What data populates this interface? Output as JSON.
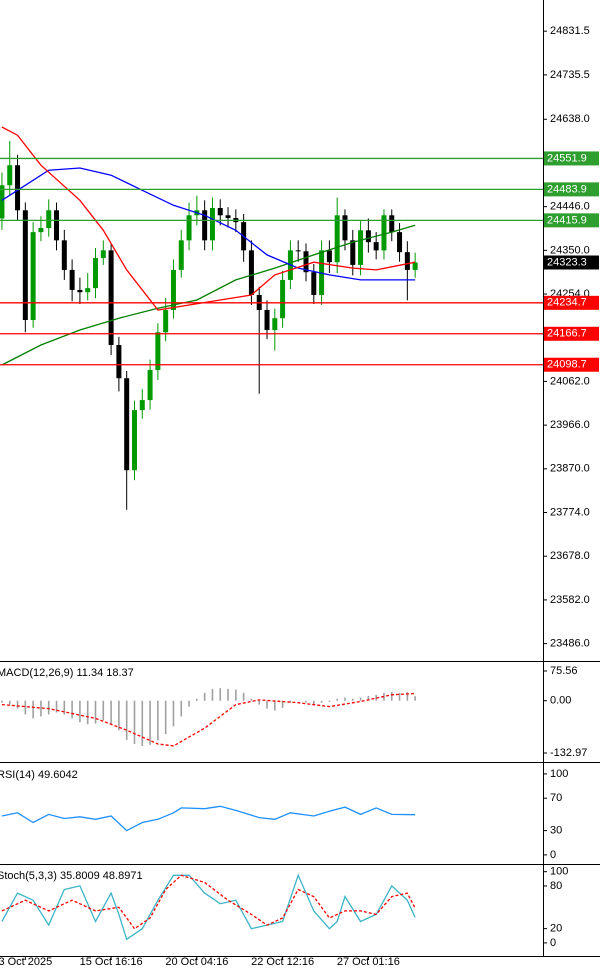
{
  "chart_data": [
    {
      "type": "candlestick",
      "xlim": [
        -0.25,
        69.4
      ],
      "ylim": [
        23450,
        24900
      ],
      "yticks": [
        24831.5,
        24735.5,
        {
          "value": 24638,
          "label": "24638.0"
        },
        {
          "value": 24446,
          "label": "24446.0"
        },
        {
          "value": 24350,
          "label": "24350.0"
        },
        {
          "value": 24254,
          "label": "24254.0"
        },
        {
          "value": 24062,
          "label": "24062.0"
        },
        {
          "value": 23966,
          "label": "23966.0"
        },
        {
          "value": 23870,
          "label": "23870.0"
        },
        {
          "value": 23774,
          "label": "23774.0"
        },
        {
          "value": 23678,
          "label": "23678.0"
        },
        {
          "value": 23582,
          "label": "23582.0"
        },
        {
          "value": 23486,
          "label": "23486.0"
        }
      ],
      "up_color": "#009900",
      "down_color": "#000000",
      "open": [
        24420,
        24493,
        24537,
        24438,
        24197,
        24390,
        24399,
        24438,
        24372,
        24307,
        24263,
        24258,
        24267,
        24333,
        24350,
        24142,
        24069,
        23867,
        23999,
        24021,
        24087,
        24170,
        24219,
        24307,
        24372,
        24427,
        24438,
        24372,
        24443,
        24427,
        24421,
        24412,
        24350,
        24252,
        24219,
        24175,
        24201,
        24285,
        24350,
        24348,
        24302,
        24252,
        24350,
        24324,
        24427,
        24372,
        24318,
        24394,
        24368,
        24350,
        24427,
        24390,
        24346,
        24307
      ],
      "high": [
        24521,
        24590,
        24560,
        24455,
        24412,
        24425,
        24462,
        24455,
        24395,
        24330,
        24290,
        24300,
        24355,
        24372,
        24365,
        24160,
        24085,
        24020,
        24045,
        24110,
        24190,
        24245,
        24330,
        24395,
        24455,
        24470,
        24460,
        24466,
        24462,
        24445,
        24440,
        24430,
        24372,
        24270,
        24240,
        24222,
        24305,
        24372,
        24372,
        24365,
        24320,
        24372,
        24372,
        24466,
        24440,
        24395,
        24415,
        24420,
        24390,
        24440,
        24440,
        24410,
        24370,
        24345
      ],
      "low": [
        24395,
        24470,
        24415,
        24170,
        24180,
        24370,
        24380,
        24350,
        24285,
        24238,
        24232,
        24240,
        24245,
        24318,
        24120,
        24040,
        23780,
        23845,
        23980,
        24000,
        24065,
        24150,
        24200,
        24290,
        24350,
        24405,
        24350,
        24350,
        24405,
        24400,
        24390,
        24325,
        24230,
        24035,
        24155,
        24130,
        24180,
        24265,
        24325,
        24282,
        24232,
        24230,
        24300,
        24300,
        24350,
        24295,
        24295,
        24345,
        24330,
        24330,
        24370,
        24325,
        24240,
        24290
      ],
      "close": [
        24493,
        24537,
        24438,
        24197,
        24390,
        24399,
        24438,
        24372,
        24307,
        24263,
        24258,
        24267,
        24333,
        24350,
        24142,
        24069,
        23867,
        23999,
        24021,
        24087,
        24170,
        24219,
        24307,
        24372,
        24427,
        24438,
        24372,
        24443,
        24427,
        24421,
        24412,
        24350,
        24252,
        24219,
        24175,
        24201,
        24285,
        24350,
        24348,
        24302,
        24252,
        24350,
        24324,
        24427,
        24372,
        24318,
        24394,
        24368,
        24350,
        24427,
        24390,
        24346,
        24307,
        24323.3
      ],
      "series": [
        {
          "color": "#008000",
          "x": [
            0,
            5,
            10,
            15,
            20,
            25,
            30,
            35,
            40,
            45,
            50,
            53
          ],
          "values": [
            24098,
            24142,
            24175,
            24201,
            24223,
            24241,
            24285,
            24311,
            24340,
            24368,
            24390,
            24405
          ]
        },
        {
          "color": "#0000ff",
          "x": [
            0,
            3,
            6,
            10,
            14,
            18,
            22,
            26,
            30,
            34,
            38,
            42,
            46,
            50,
            53
          ],
          "values": [
            24460,
            24493,
            24526,
            24531,
            24515,
            24482,
            24449,
            24427,
            24394,
            24340,
            24311,
            24296,
            24285,
            24285,
            24285
          ]
        },
        {
          "color": "#ff0000",
          "x": [
            0,
            2,
            5,
            10,
            13,
            16,
            20,
            24,
            28,
            32,
            35,
            40,
            45,
            48,
            53
          ],
          "values": [
            24621,
            24603,
            24537,
            24460,
            24394,
            24307,
            24219,
            24230,
            24241,
            24252,
            24296,
            24324,
            24311,
            24307,
            24324
          ]
        }
      ],
      "levels": [
        {
          "value": 24551.9,
          "color": "#2e9e2e"
        },
        {
          "value": 24483.9,
          "color": "#2e9e2e"
        },
        {
          "value": 24415.9,
          "color": "#2e9e2e"
        },
        {
          "value": 24234.7,
          "color": "#ff0000"
        },
        {
          "value": 24166.7,
          "color": "#ff0000"
        },
        {
          "value": 24098.7,
          "color": "#ff0000"
        }
      ],
      "last_price": 24323.3
    },
    {
      "type": "bar",
      "title": "MACD(12,26,9) 11.34 18.37",
      "ylim": [
        -153.3,
        95.9
      ],
      "yticks": [
        75.56,
        {
          "value": 0,
          "label": "0.00"
        },
        -132.97
      ],
      "color": "#a0a0a0",
      "values": [
        -5,
        -10,
        -20,
        -35,
        -45,
        -40,
        -35,
        -30,
        -35,
        -45,
        -55,
        -60,
        -58,
        -50,
        -60,
        -75,
        -100,
        -110,
        -115,
        -112,
        -100,
        -85,
        -65,
        -40,
        -15,
        5,
        20,
        30,
        32,
        30,
        28,
        20,
        5,
        -10,
        -20,
        -25,
        -18,
        -5,
        0,
        -5,
        -12,
        -5,
        -3,
        5,
        8,
        5,
        8,
        12,
        15,
        20,
        22,
        20,
        22,
        11.34
      ],
      "series": [
        {
          "color": "#ff0000",
          "dash": true,
          "x": [
            0,
            6,
            12,
            16,
            20,
            22,
            26,
            30,
            33,
            38,
            42,
            46,
            50,
            53
          ],
          "values": [
            -10,
            -20,
            -45,
            -75,
            -110,
            -115,
            -70,
            -10,
            2,
            -5,
            -15,
            -2,
            15,
            18.37
          ]
        }
      ]
    },
    {
      "type": "line",
      "title": "RSI(14) 49.6042",
      "ylim": [
        -10,
        111
      ],
      "yticks": [
        100,
        70,
        30,
        0
      ],
      "series": [
        {
          "color": "#1e90ff",
          "x": [
            0,
            2,
            4,
            6,
            8,
            10,
            12,
            14,
            16,
            18,
            20,
            22,
            23,
            26,
            28,
            30,
            33,
            35,
            37,
            40,
            42,
            44,
            46,
            48,
            50,
            53
          ],
          "values": [
            48,
            52,
            40,
            50,
            45,
            47,
            44,
            48,
            30,
            40,
            44,
            52,
            58,
            57,
            60,
            55,
            46,
            44,
            52,
            48,
            54,
            59,
            50,
            58,
            50,
            49.6042
          ]
        }
      ]
    },
    {
      "type": "line",
      "title": "Stoch(5,3,3) 35.8009 48.8971",
      "ylim": [
        -17,
        108
      ],
      "yticks": [
        100,
        80,
        20,
        0
      ],
      "xticks": [
        {
          "value": 3,
          "label": "3 Oct 2025"
        },
        {
          "value": 14,
          "label": "15 Oct 16:16"
        },
        {
          "value": 25,
          "label": "20 Oct 04:16"
        },
        {
          "value": 36,
          "label": "22 Oct 12:16"
        },
        {
          "value": 47,
          "label": "27 Oct 01:16"
        }
      ],
      "series": [
        {
          "color": "#3cb4c8",
          "x": [
            0,
            2,
            4,
            6,
            8,
            10,
            12,
            14,
            15,
            16,
            18,
            20,
            22,
            24,
            26,
            28,
            30,
            32,
            34,
            36,
            38,
            40,
            42,
            43,
            44,
            46,
            48,
            50,
            52,
            53
          ],
          "values": [
            30,
            70,
            60,
            25,
            75,
            80,
            30,
            70,
            40,
            5,
            20,
            60,
            95,
            95,
            70,
            55,
            60,
            20,
            25,
            30,
            95,
            45,
            20,
            30,
            65,
            30,
            40,
            80,
            60,
            35.8009
          ]
        },
        {
          "color": "#ff0000",
          "dash": true,
          "x": [
            0,
            3,
            6,
            9,
            12,
            15,
            17,
            19,
            21,
            23,
            26,
            29,
            32,
            34,
            36,
            38,
            40,
            42,
            44,
            46,
            48,
            50,
            52,
            53
          ],
          "values": [
            45,
            60,
            45,
            60,
            45,
            50,
            20,
            35,
            75,
            95,
            85,
            60,
            40,
            25,
            35,
            75,
            65,
            35,
            45,
            45,
            40,
            65,
            70,
            48.8971
          ]
        }
      ]
    }
  ]
}
